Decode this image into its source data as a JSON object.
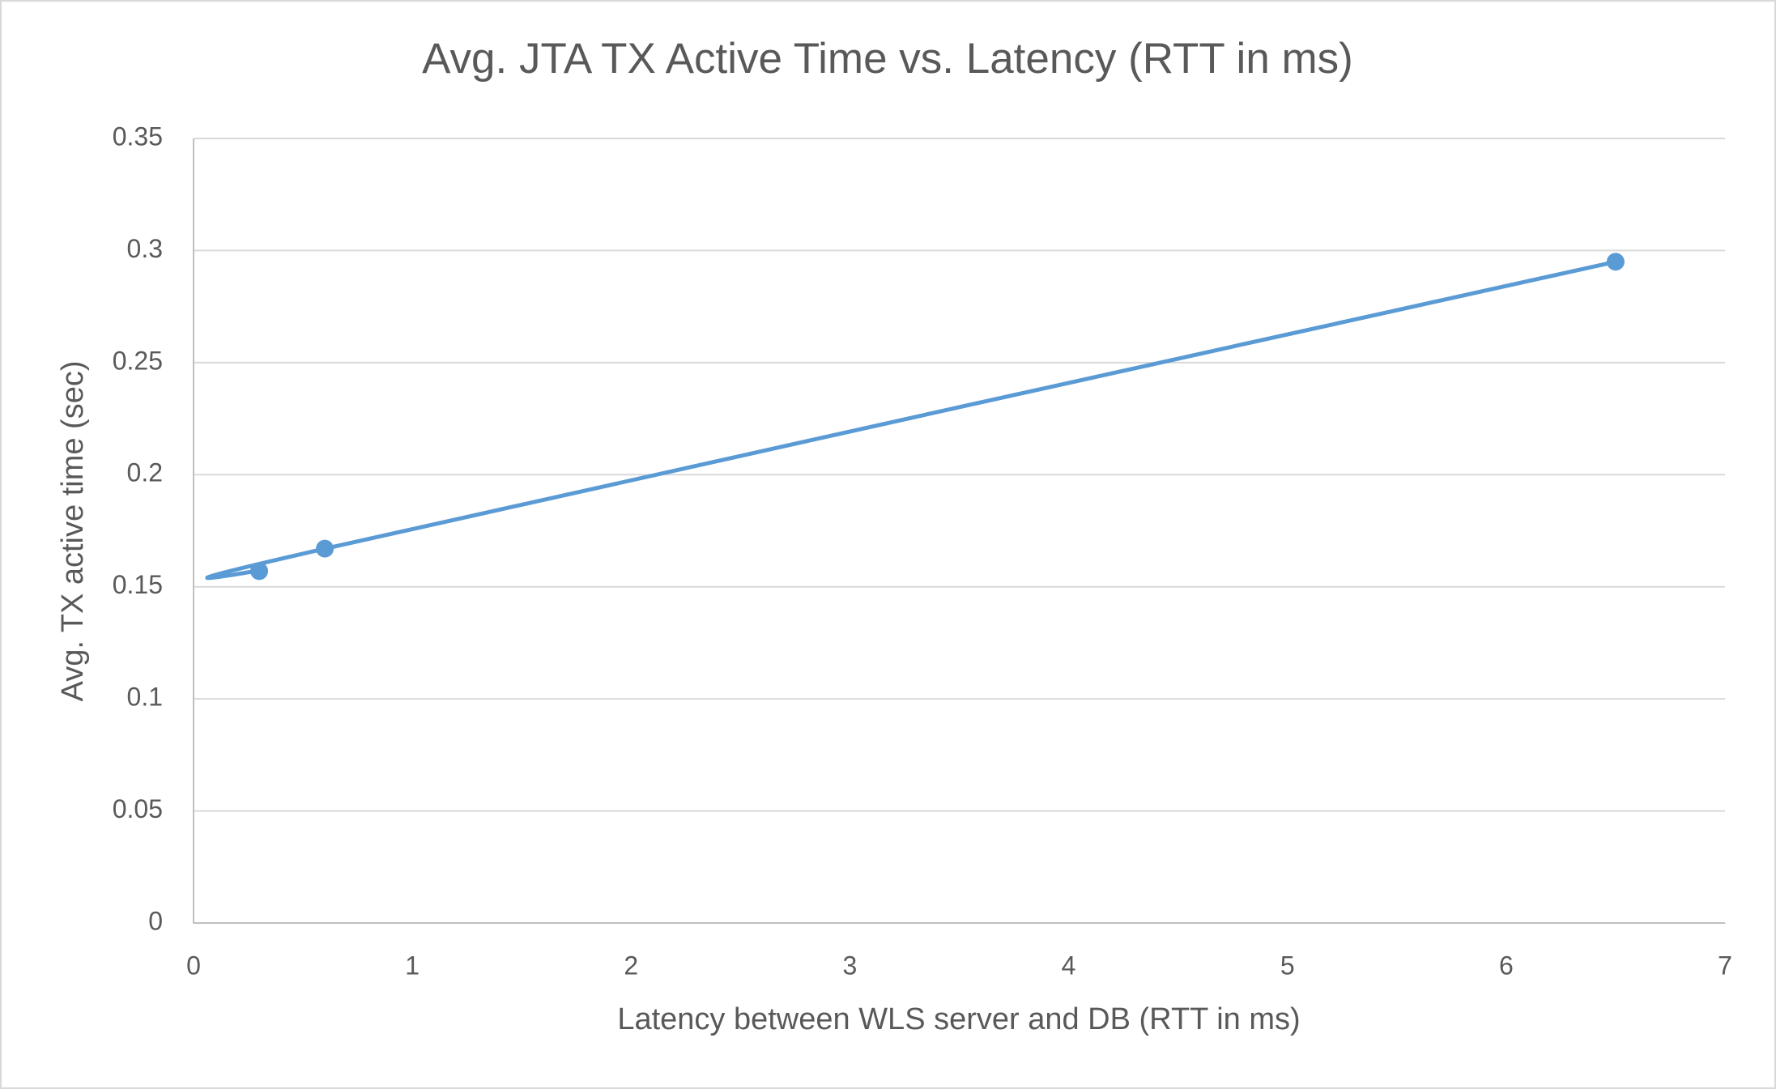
{
  "chart_data": {
    "type": "scatter",
    "title": "Avg. JTA TX Active Time vs. Latency (RTT in ms)",
    "x_label": "Latency between WLS server and DB (RTT in ms)",
    "y_label": "Avg. TX active time (sec)",
    "series": [
      {
        "name": "Avg. TX active time",
        "color": "#5b9bd5",
        "x": [
          0.3,
          0.6,
          6.5
        ],
        "values": [
          0.157,
          0.167,
          0.295
        ]
      }
    ],
    "xlim": [
      0,
      7
    ],
    "xticks": [
      0,
      1,
      2,
      3,
      4,
      5,
      6,
      7
    ],
    "ylim": [
      0,
      0.35
    ],
    "yticks": [
      0,
      0.05,
      0.1,
      0.15,
      0.2,
      0.25,
      0.3,
      0.35
    ],
    "grid": true,
    "smooth": true
  }
}
